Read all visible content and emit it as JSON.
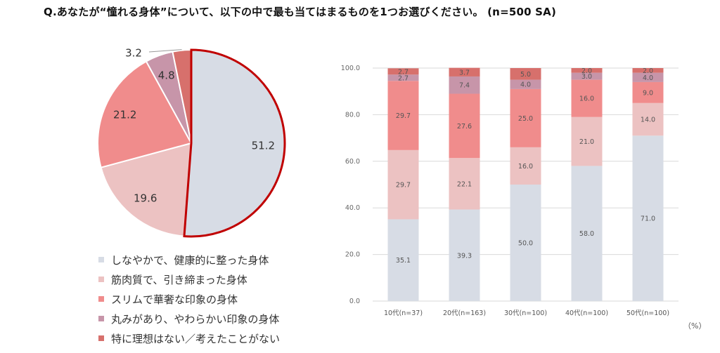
{
  "title": "Q.あなたが“憧れる身体”について、以下の中で最も当てはまるものを1つお選びください。 (n=500 SA)",
  "unit": "（%）",
  "colors": {
    "slim_healthy": "#d7dce5",
    "muscular": "#ecc2c2",
    "slim_glamorous": "#f08c8c",
    "soft": "#c795a9",
    "none": "#d7706c",
    "highlight": "#c00000"
  },
  "legend": [
    {
      "label": "しなやかで、健康的に整った身体",
      "color_key": "slim_healthy"
    },
    {
      "label": "筋肉質で、引き締まった身体",
      "color_key": "muscular"
    },
    {
      "label": "スリムで華奢な印象の身体",
      "color_key": "slim_glamorous"
    },
    {
      "label": "丸みがあり、やわらかい印象の身体",
      "color_key": "soft"
    },
    {
      "label": "特に理想はない／考えたことがない",
      "color_key": "none"
    }
  ],
  "chart_data": [
    {
      "type": "pie",
      "slices": [
        {
          "category": "しなやかで、健康的に整った身体",
          "value": 51.2,
          "label": "51.2",
          "color_key": "slim_healthy",
          "highlighted": true
        },
        {
          "category": "筋肉質で、引き締まった身体",
          "value": 19.6,
          "label": "19.6",
          "color_key": "muscular"
        },
        {
          "category": "スリムで華奢な印象の身体",
          "value": 21.2,
          "label": "21.2",
          "color_key": "slim_glamorous"
        },
        {
          "category": "丸みがあり、やわらかい印象の身体",
          "value": 4.8,
          "label": "4.8",
          "color_key": "soft"
        },
        {
          "category": "特に理想はない／考えたことがない",
          "value": 3.2,
          "label": "3.2",
          "color_key": "none"
        }
      ]
    },
    {
      "type": "bar",
      "stacked": true,
      "categories": [
        "10代(n=37)",
        "20代(n=163)",
        "30代(n=100)",
        "40代(n=100)",
        "50代(n=100)"
      ],
      "ylim": [
        0,
        100
      ],
      "yticks": [
        "0.0",
        "20.0",
        "40.0",
        "60.0",
        "80.0",
        "100.0"
      ],
      "grid": true,
      "series": [
        {
          "category": "しなやかで、健康的に整った身体",
          "color_key": "slim_healthy",
          "values": [
            35.1,
            39.3,
            50.0,
            58.0,
            71.0
          ],
          "labels": [
            "35.1",
            "39.3",
            "50.0",
            "58.0",
            "71.0"
          ]
        },
        {
          "category": "筋肉質で、引き締まった身体",
          "color_key": "muscular",
          "values": [
            29.7,
            22.1,
            16.0,
            21.0,
            14.0
          ],
          "labels": [
            "29.7",
            "22.1",
            "16.0",
            "21.0",
            "14.0"
          ]
        },
        {
          "category": "スリムで華奢な印象の身体",
          "color_key": "slim_glamorous",
          "values": [
            29.7,
            27.6,
            25.0,
            16.0,
            9.0
          ],
          "labels": [
            "29.7",
            "27.6",
            "25.0",
            "16.0",
            "9.0"
          ]
        },
        {
          "category": "丸みがあり、やわらかい印象の身体",
          "color_key": "soft",
          "values": [
            2.7,
            7.4,
            4.0,
            3.0,
            4.0
          ],
          "labels": [
            "2.7",
            "7.4",
            "4.0",
            "3.0",
            "4.0"
          ]
        },
        {
          "category": "特に理想はない／考えたことがない",
          "color_key": "none",
          "values": [
            2.7,
            3.7,
            5.0,
            2.0,
            2.0
          ],
          "labels": [
            "2.7",
            "3.7",
            "5.0",
            "2.0",
            "2.0"
          ]
        }
      ]
    }
  ]
}
